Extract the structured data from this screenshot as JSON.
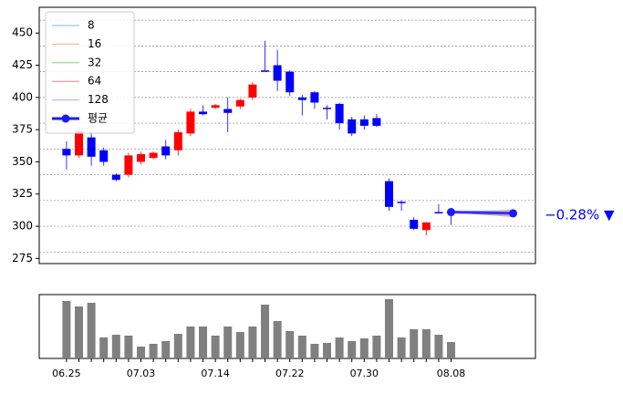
{
  "chart_data": {
    "type": "candlestick",
    "categories": [
      "06.25",
      null,
      null,
      null,
      null,
      null,
      "07.03",
      null,
      null,
      null,
      null,
      null,
      "07.14",
      null,
      null,
      null,
      null,
      null,
      "07.22",
      null,
      null,
      null,
      null,
      null,
      "07.30",
      null,
      null,
      null,
      null,
      null,
      null,
      "08.08"
    ],
    "open": [
      360,
      355,
      369,
      359,
      340,
      340,
      350,
      353,
      362,
      359,
      372,
      389,
      392,
      391,
      393,
      400,
      421,
      425,
      420,
      400,
      404,
      392,
      395,
      383,
      383,
      384,
      335,
      319,
      305,
      297,
      311,
      311
    ],
    "high": [
      366,
      376,
      373,
      361,
      341,
      357,
      358,
      358,
      367,
      375,
      391,
      394,
      395,
      400,
      399,
      412,
      444,
      437,
      421,
      402,
      405,
      394,
      396,
      385,
      386,
      387,
      337,
      320,
      307,
      303,
      317,
      312
    ],
    "low": [
      344,
      353,
      347,
      347,
      335,
      338,
      348,
      352,
      352,
      355,
      370,
      386,
      391,
      373,
      391,
      398,
      420,
      405,
      401,
      386,
      391,
      383,
      375,
      370,
      375,
      377,
      312,
      312,
      297,
      293,
      310,
      301
    ],
    "close": [
      355,
      374,
      354,
      350,
      336,
      355,
      356,
      357,
      355,
      373,
      389,
      387,
      394,
      388,
      398,
      410,
      420,
      413,
      404,
      398,
      396,
      392,
      380,
      372,
      378,
      378,
      315,
      318,
      298,
      303,
      310,
      310
    ],
    "up_color": "#ff0000",
    "down_color": "#0000ff",
    "xlim": [
      -2.2,
      37.8
    ],
    "ylim": [
      271,
      470
    ],
    "yticks": [
      275,
      300,
      325,
      350,
      375,
      400,
      425,
      450
    ],
    "grid_lines": [
      280,
      300,
      320,
      340,
      360,
      380,
      400,
      420,
      440,
      460
    ],
    "volume": [
      63,
      57,
      61,
      23,
      26,
      25,
      13,
      16,
      19,
      27,
      35,
      35,
      25,
      35,
      29,
      35,
      59,
      41,
      30,
      25,
      16,
      17,
      23,
      19,
      22,
      25,
      65,
      23,
      32,
      32,
      26,
      18
    ],
    "volume_color": "#808080",
    "volume_lim": [
      0,
      70
    ],
    "forecast": {
      "x": [
        31,
        36
      ],
      "series": [
        {
          "name": "8",
          "color": "#7fb3e6",
          "values": [
            311,
            312.5
          ]
        },
        {
          "name": "16",
          "color": "#f5b07a",
          "values": [
            311,
            311.5
          ]
        },
        {
          "name": "32",
          "color": "#7fd17f",
          "values": [
            311,
            310.5
          ]
        },
        {
          "name": "64",
          "color": "#f08080",
          "values": [
            311,
            307.5
          ]
        },
        {
          "name": "128",
          "color": "#c9a0f0",
          "values": [
            311,
            309
          ]
        },
        {
          "name": "평균",
          "color": "#1a1aff",
          "values": [
            311,
            310
          ],
          "marker": true
        }
      ],
      "label": "−0.28% ▼"
    }
  }
}
